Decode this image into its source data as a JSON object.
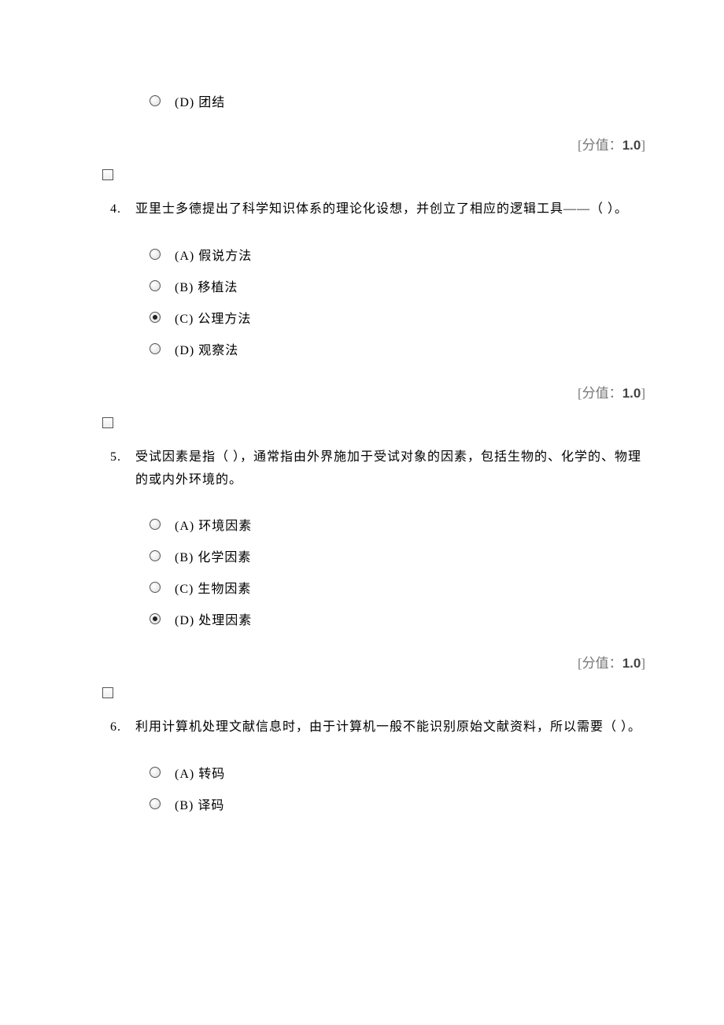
{
  "score_label_prefix": "[分值：",
  "score_label_suffix": "]",
  "score_value": "1.0",
  "q3_tail_option": {
    "letter": "(D)",
    "text": "团结",
    "selected": false
  },
  "q4": {
    "number": "4.",
    "text": "亚里士多德提出了科学知识体系的理论化设想，并创立了相应的逻辑工具——（ ）。",
    "options": [
      {
        "letter": "(A)",
        "text": "假说方法",
        "selected": false
      },
      {
        "letter": "(B)",
        "text": "移植法",
        "selected": false
      },
      {
        "letter": "(C)",
        "text": "公理方法",
        "selected": true
      },
      {
        "letter": "(D)",
        "text": "观察法",
        "selected": false
      }
    ]
  },
  "q5": {
    "number": "5.",
    "text": "受试因素是指（ ），通常指由外界施加于受试对象的因素，包括生物的、化学的、物理的或内外环境的。",
    "options": [
      {
        "letter": "(A)",
        "text": "环境因素",
        "selected": false
      },
      {
        "letter": "(B)",
        "text": "化学因素",
        "selected": false
      },
      {
        "letter": "(C)",
        "text": "生物因素",
        "selected": false
      },
      {
        "letter": "(D)",
        "text": "处理因素",
        "selected": true
      }
    ]
  },
  "q6": {
    "number": "6.",
    "text": "利用计算机处理文献信息时，由于计算机一般不能识别原始文献资料，所以需要（ ）。",
    "options": [
      {
        "letter": "(A)",
        "text": "转码",
        "selected": false
      },
      {
        "letter": "(B)",
        "text": "译码",
        "selected": false
      }
    ]
  }
}
